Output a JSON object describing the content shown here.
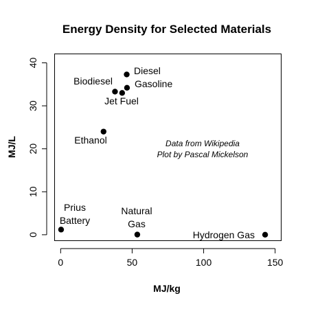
{
  "chart_data": {
    "type": "scatter",
    "title": "Energy Density for Selected Materials",
    "xlabel": "MJ/kg",
    "ylabel": "MJ/L",
    "xlim": [
      -4,
      154
    ],
    "ylim": [
      -1.3,
      42
    ],
    "xticks": [
      0,
      50,
      100,
      150
    ],
    "yticks": [
      0,
      10,
      20,
      30,
      40
    ],
    "points": [
      {
        "name": "Diesel",
        "x": 46.2,
        "y": 37.3
      },
      {
        "name": "Gasoline",
        "x": 46.4,
        "y": 34.2
      },
      {
        "name": "Biodiesel",
        "x": 38,
        "y": 33.3
      },
      {
        "name": "Jet Fuel",
        "x": 43,
        "y": 33
      },
      {
        "name": "Ethanol",
        "x": 30,
        "y": 24
      },
      {
        "name": "Prius Battery",
        "x": 0.3,
        "y": 1.2
      },
      {
        "name": "Natural Gas",
        "x": 53.6,
        "y": 0.04
      },
      {
        "name": "Hydrogen Gas",
        "x": 143,
        "y": 0.01
      }
    ],
    "point_labels": [
      {
        "id": "diesel",
        "text": "Diesel"
      },
      {
        "id": "gasoline",
        "text": "Gasoline"
      },
      {
        "id": "biodiesel",
        "text": "Biodiesel"
      },
      {
        "id": "jet-fuel",
        "text": "Jet Fuel"
      },
      {
        "id": "ethanol",
        "text": "Ethanol"
      },
      {
        "id": "prius-1",
        "text": "Prius"
      },
      {
        "id": "prius-2",
        "text": "Battery"
      },
      {
        "id": "natural-gas-1",
        "text": "Natural"
      },
      {
        "id": "natural-gas-2",
        "text": "Gas"
      },
      {
        "id": "hydrogen",
        "text": "Hydrogen Gas"
      }
    ],
    "annotation": [
      "Data from Wikipedia",
      "Plot by Pascal Mickelson"
    ],
    "colors": {
      "point": "#000000",
      "axis": "#000000",
      "background": "#ffffff"
    }
  }
}
